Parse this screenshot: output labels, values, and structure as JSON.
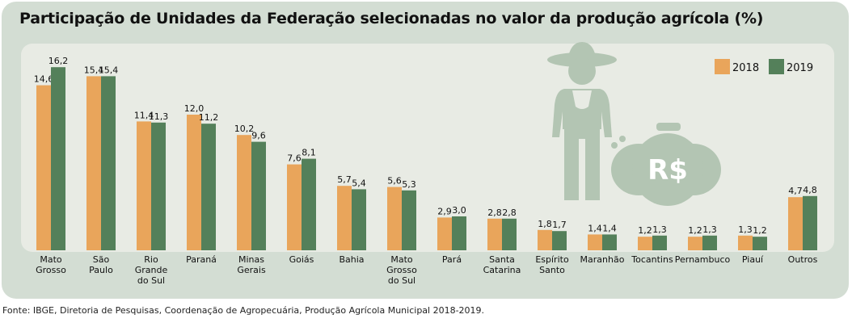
{
  "chart_data": {
    "type": "bar",
    "title": "Participação de Unidades da Federação selecionadas no valor da produção agrícola (%)",
    "categories": [
      "Mato Grosso",
      "São Paulo",
      "Rio Grande do Sul",
      "Paraná",
      "Minas Gerais",
      "Goiás",
      "Bahia",
      "Mato Grosso do Sul",
      "Pará",
      "Santa Catarina",
      "Espírito Santo",
      "Maranhão",
      "Tocantins",
      "Pernambuco",
      "Piauí",
      "Outros"
    ],
    "category_lines": [
      [
        "Mato",
        "Grosso"
      ],
      [
        "São",
        "Paulo"
      ],
      [
        "Rio",
        "Grande",
        "do Sul"
      ],
      [
        "Paraná"
      ],
      [
        "Minas",
        "Gerais"
      ],
      [
        "Goiás"
      ],
      [
        "Bahia"
      ],
      [
        "Mato",
        "Grosso",
        "do Sul"
      ],
      [
        "Pará"
      ],
      [
        "Santa",
        "Catarina"
      ],
      [
        "Espírito",
        "Santo"
      ],
      [
        "Maranhão"
      ],
      [
        "Tocantins"
      ],
      [
        "Pernambuco"
      ],
      [
        "Piauí"
      ],
      [
        "Outros"
      ]
    ],
    "series": [
      {
        "name": "2018",
        "color": "#e9a55b",
        "values": [
          14.6,
          15.4,
          11.4,
          12.0,
          10.2,
          7.6,
          5.7,
          5.6,
          2.9,
          2.8,
          1.8,
          1.4,
          1.2,
          1.2,
          1.3,
          4.7
        ]
      },
      {
        "name": "2019",
        "color": "#54805a",
        "values": [
          16.2,
          15.4,
          11.3,
          11.2,
          9.6,
          8.1,
          5.4,
          5.3,
          3.0,
          2.8,
          1.7,
          1.4,
          1.3,
          1.3,
          1.2,
          4.8
        ]
      }
    ],
    "ylim": [
      0,
      17
    ],
    "legend": "top-right",
    "grid": false,
    "decimal_separator": ","
  },
  "illustration": {
    "icon": "farmer-with-money-bags-icon",
    "currency_text": "R$"
  },
  "source": "Fonte: IBGE, Diretoria de Pesquisas, Coordenação de Agropecuária, Produção Agrícola Municipal 2018-2019."
}
